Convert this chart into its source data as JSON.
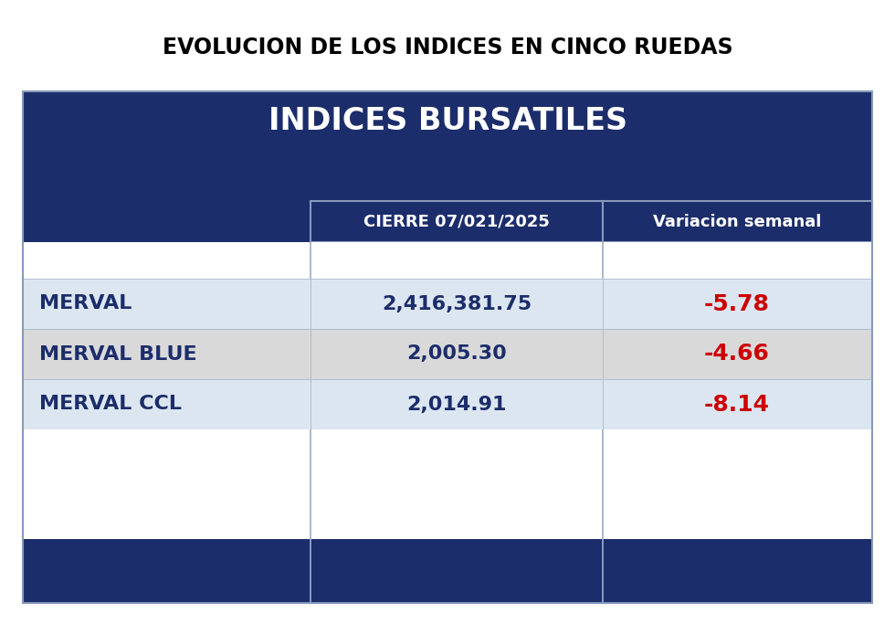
{
  "title": "EVOLUCION DE LOS INDICES EN CINCO RUEDAS",
  "table_title": "INDICES BURSATILES",
  "col_header1": "CIERRE 07/021/2025",
  "col_header2": "Variacion semanal",
  "rows": [
    {
      "label": "MERVAL",
      "value": "2,416,381.75",
      "change": "-5.78"
    },
    {
      "label": "MERVAL BLUE",
      "value": "2,005.30",
      "change": "-4.66"
    },
    {
      "label": "MERVAL CCL",
      "value": "2,014.91",
      "change": "-8.14"
    }
  ],
  "bg_color": "#ffffff",
  "dark_blue": "#1c2d6b",
  "row_light": "#dce6f1",
  "row_grey": "#d9d9d9",
  "bottom_bar": "#1c2d6b",
  "text_white": "#ffffff",
  "text_dark": "#1c2d6b",
  "text_red": "#cc0000",
  "title_fontsize": 17,
  "table_title_fontsize": 24,
  "header_fontsize": 13,
  "row_fontsize": 16
}
